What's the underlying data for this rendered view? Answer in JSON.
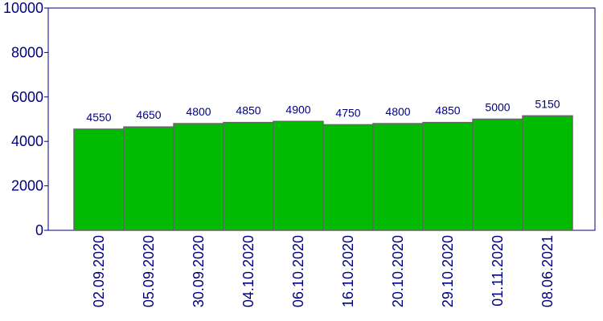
{
  "chart_data": {
    "type": "bar",
    "categories": [
      "02.09.2020",
      "05.09.2020",
      "30.09.2020",
      "04.10.2020",
      "06.10.2020",
      "16.10.2020",
      "20.10.2020",
      "29.10.2020",
      "01.11.2020",
      "08.06.2021"
    ],
    "values": [
      4550,
      4650,
      4800,
      4850,
      4900,
      4750,
      4800,
      4850,
      5000,
      5150
    ],
    "color": "#00bb00",
    "ylim": [
      0,
      10000
    ],
    "yticks": [
      0,
      2000,
      4000,
      6000,
      8000,
      10000
    ],
    "grid": false
  }
}
